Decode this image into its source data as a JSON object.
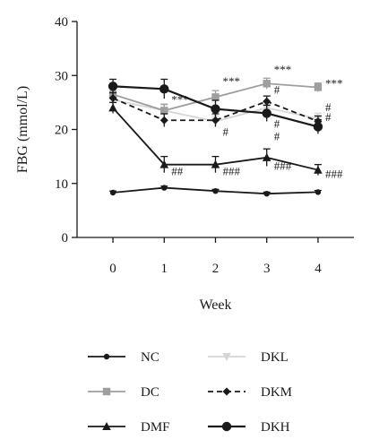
{
  "chart_data": {
    "type": "line",
    "xlabel": "Week",
    "ylabel": "FBG (mmol/L)",
    "xlim": [
      -0.7,
      4.7
    ],
    "ylim": [
      0,
      40
    ],
    "x": [
      0,
      1,
      2,
      3,
      4
    ],
    "xticks": [
      "0",
      "1",
      "2",
      "3",
      "4"
    ],
    "yticks": [
      "0",
      "10",
      "20",
      "30",
      "40"
    ],
    "grid": false,
    "legend_placement": "bottom",
    "series": [
      {
        "name": "NC",
        "values": [
          8.3,
          9.2,
          8.6,
          8.1,
          8.4
        ],
        "errors": [
          0.3,
          0.3,
          0.3,
          0.3,
          0.3
        ],
        "color": "#1a1a1a",
        "marker": "dot",
        "dash": "solid"
      },
      {
        "name": "DC",
        "values": [
          26.5,
          23.5,
          26.0,
          28.5,
          27.8
        ],
        "errors": [
          1.2,
          1.2,
          1.2,
          1.0,
          0.8
        ],
        "color": "#9e9e9e",
        "marker": "square",
        "dash": "solid"
      },
      {
        "name": "DMF",
        "values": [
          24.0,
          13.5,
          13.5,
          14.8,
          12.5
        ],
        "errors": [
          1.0,
          1.5,
          1.5,
          1.6,
          1.0
        ],
        "color": "#1a1a1a",
        "marker": "triangle-up",
        "dash": "solid"
      },
      {
        "name": "DKL",
        "values": [
          25.5,
          23.5,
          21.5,
          24.0,
          22.0
        ],
        "errors": [
          0.8,
          1.0,
          1.0,
          1.0,
          1.0
        ],
        "color": "#d6d6d6",
        "marker": "triangle-down",
        "dash": "solid"
      },
      {
        "name": "DKM",
        "values": [
          25.8,
          21.7,
          21.7,
          25.2,
          21.5
        ],
        "errors": [
          1.0,
          1.2,
          1.2,
          1.0,
          1.0
        ],
        "color": "#1a1a1a",
        "marker": "diamond",
        "dash": "dashed"
      },
      {
        "name": "DKH",
        "values": [
          28.0,
          27.5,
          23.8,
          23.0,
          20.5
        ],
        "errors": [
          1.3,
          1.8,
          1.6,
          1.5,
          1.3
        ],
        "color": "#1a1a1a",
        "marker": "big-dot",
        "dash": "solid"
      }
    ],
    "annotations": [
      {
        "text": "***",
        "x": 1,
        "y": 24.8
      },
      {
        "text": "***",
        "x": 2,
        "y": 28.2
      },
      {
        "text": "***",
        "x": 3,
        "y": 30.4
      },
      {
        "text": "***",
        "x": 4,
        "y": 27.8
      },
      {
        "text": "#",
        "x": 2,
        "y": 18.8
      },
      {
        "text": "#",
        "x": 3,
        "y": 26.6
      },
      {
        "text": "#",
        "x": 3,
        "y": 20.3
      },
      {
        "text": "#",
        "x": 3,
        "y": 18.0
      },
      {
        "text": "#",
        "x": 4,
        "y": 23.4
      },
      {
        "text": "#",
        "x": 4,
        "y": 21.6
      },
      {
        "text": "##",
        "x": 1,
        "y": 11.5
      },
      {
        "text": "###",
        "x": 2,
        "y": 11.5
      },
      {
        "text": "###",
        "x": 3,
        "y": 12.5
      },
      {
        "text": "###",
        "x": 4,
        "y": 11.0
      }
    ]
  }
}
